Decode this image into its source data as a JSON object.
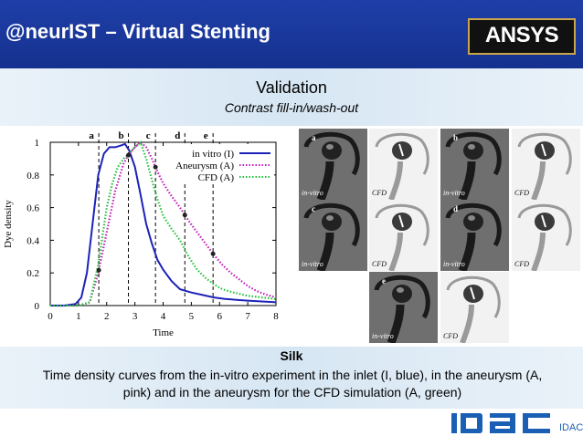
{
  "header": {
    "title": "@neurIST – Virtual Stenting",
    "logo_text": "ANSYS"
  },
  "slide": {
    "title": "Validation",
    "subtitle": "Contrast fill-in/wash-out"
  },
  "chart_data": {
    "type": "line",
    "xlabel": "Time",
    "ylabel": "Dye density",
    "xlim": [
      0,
      8
    ],
    "ylim": [
      0,
      1
    ],
    "xticks": [
      "0",
      "1",
      "2",
      "3",
      "4",
      "5",
      "6",
      "7",
      "8"
    ],
    "yticks": [
      "0",
      "0.2",
      "0.4",
      "0.6",
      "0.8",
      "1"
    ],
    "legend_position": "top-right",
    "phase_markers": [
      {
        "label": "a",
        "x": 1.72
      },
      {
        "label": "b",
        "x": 2.77
      },
      {
        "label": "c",
        "x": 3.73
      },
      {
        "label": "d",
        "x": 4.77
      },
      {
        "label": "e",
        "x": 5.77
      }
    ],
    "series": [
      {
        "name": "in vitro (I)",
        "color": "#1d22b8",
        "style": "solid",
        "x": [
          0,
          0.5,
          0.9,
          1.1,
          1.3,
          1.5,
          1.7,
          1.9,
          2.1,
          2.3,
          2.5,
          2.65,
          2.8,
          3.0,
          3.2,
          3.4,
          3.6,
          3.8,
          4.0,
          4.3,
          4.6,
          5.0,
          5.4,
          5.8,
          6.2,
          6.6,
          7.0,
          7.5,
          8.0
        ],
        "y": [
          0,
          0,
          0.01,
          0.05,
          0.2,
          0.5,
          0.8,
          0.93,
          0.97,
          0.97,
          0.98,
          0.99,
          0.95,
          0.85,
          0.68,
          0.5,
          0.38,
          0.28,
          0.22,
          0.15,
          0.1,
          0.08,
          0.065,
          0.05,
          0.04,
          0.035,
          0.03,
          0.025,
          0.02
        ]
      },
      {
        "name": "Aneurysm (A)",
        "color": "#c21ab8",
        "style": "dotted",
        "x": [
          0,
          1,
          1.4,
          1.7,
          2.0,
          2.3,
          2.6,
          2.8,
          3.0,
          3.2,
          3.4,
          3.6,
          3.8,
          4.0,
          4.3,
          4.6,
          4.9,
          5.2,
          5.5,
          5.8,
          6.1,
          6.4,
          6.7,
          7.0,
          7.3,
          7.6,
          8.0
        ],
        "y": [
          0,
          0,
          0.02,
          0.2,
          0.45,
          0.7,
          0.87,
          0.93,
          0.97,
          1.0,
          0.97,
          0.9,
          0.82,
          0.75,
          0.67,
          0.6,
          0.52,
          0.45,
          0.38,
          0.31,
          0.25,
          0.2,
          0.16,
          0.12,
          0.09,
          0.07,
          0.05
        ]
      },
      {
        "name": "CFD (A)",
        "color": "#22c03a",
        "style": "dotted",
        "x": [
          0,
          1,
          1.4,
          1.7,
          2.0,
          2.2,
          2.4,
          2.6,
          2.8,
          3.0,
          3.2,
          3.4,
          3.6,
          3.8,
          4.0,
          4.3,
          4.6,
          4.9,
          5.2,
          5.5,
          5.8,
          6.1,
          6.5,
          7.0,
          7.5,
          8.0
        ],
        "y": [
          0,
          0,
          0.02,
          0.25,
          0.6,
          0.75,
          0.85,
          0.9,
          0.93,
          0.97,
          1.0,
          0.9,
          0.77,
          0.65,
          0.55,
          0.47,
          0.4,
          0.3,
          0.22,
          0.17,
          0.13,
          0.1,
          0.08,
          0.06,
          0.05,
          0.04
        ]
      }
    ]
  },
  "photos": [
    {
      "letter": "a",
      "label": "in-vitro",
      "kind": "vitro"
    },
    {
      "letter": "",
      "label": "CFD",
      "kind": "cfd"
    },
    {
      "letter": "b",
      "label": "in-vitro",
      "kind": "vitro"
    },
    {
      "letter": "",
      "label": "CFD",
      "kind": "cfd"
    },
    {
      "letter": "c",
      "label": "in-vitro",
      "kind": "vitro"
    },
    {
      "letter": "",
      "label": "CFD",
      "kind": "cfd"
    },
    {
      "letter": "d",
      "label": "in-vitro",
      "kind": "vitro"
    },
    {
      "letter": "",
      "label": "CFD",
      "kind": "cfd"
    },
    {
      "letter": "e",
      "label": "in-vitro",
      "kind": "vitro"
    },
    {
      "letter": "",
      "label": "CFD",
      "kind": "cfd"
    }
  ],
  "caption": {
    "heading": "Silk",
    "text": "Time density curves from the in-vitro experiment in the inlet (I, blue), in the aneurysm (A, pink) and in the aneurysm for the CFD simulation (A, green)"
  },
  "footer": {
    "logo_text": "IDAC",
    "logo_color": "#1a5fb4"
  }
}
